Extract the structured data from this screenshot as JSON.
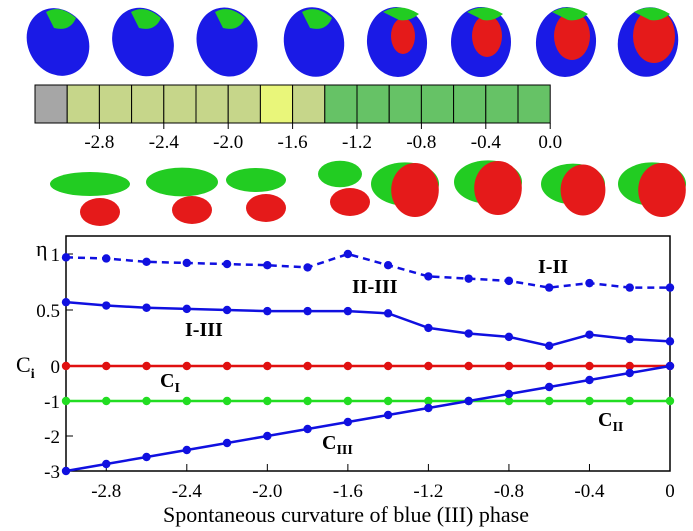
{
  "chart_data": [
    {
      "type": "heatmap",
      "cells": [
        {
          "x": -3.0,
          "color": "#a6a6a6"
        },
        {
          "x": -2.8,
          "color": "#c6d68a"
        },
        {
          "x": -2.6,
          "color": "#c6d68a"
        },
        {
          "x": -2.4,
          "color": "#c6d68a"
        },
        {
          "x": -2.2,
          "color": "#c6d68a"
        },
        {
          "x": -2.0,
          "color": "#c6d68a"
        },
        {
          "x": -1.8,
          "color": "#c6d68a"
        },
        {
          "x": -1.6,
          "color": "#e9f67a"
        },
        {
          "x": -1.4,
          "color": "#c6d68a"
        },
        {
          "x": -1.2,
          "color": "#66c266"
        },
        {
          "x": -1.0,
          "color": "#66c266"
        },
        {
          "x": -0.8,
          "color": "#66c266"
        },
        {
          "x": -0.6,
          "color": "#66c266"
        },
        {
          "x": -0.4,
          "color": "#66c266"
        },
        {
          "x": -0.2,
          "color": "#66c266"
        },
        {
          "x": 0.0,
          "color": "#66c266"
        }
      ],
      "tick_labels": [
        "-2.8",
        "-2.4",
        "-2.0",
        "-1.6",
        "-1.2",
        "-0.8",
        "-0.4",
        "0.0"
      ]
    },
    {
      "type": "line",
      "x": [
        -3.0,
        -2.8,
        -2.6,
        -2.4,
        -2.2,
        -2.0,
        -1.8,
        -1.6,
        -1.4,
        -1.2,
        -1.0,
        -0.8,
        -0.6,
        -0.4,
        -0.2,
        0.0
      ],
      "series": [
        {
          "name": "I-II",
          "style": "dashed",
          "color": "#1010e0",
          "values": [
            0.97,
            0.96,
            0.93,
            0.92,
            0.91,
            0.9,
            0.88,
            1.0,
            0.9,
            0.8,
            0.78,
            0.76,
            0.7,
            0.74,
            0.7,
            0.7
          ]
        },
        {
          "name": "I-III",
          "style": "solid",
          "color": "#1010e0",
          "values": [
            0.57,
            0.54,
            0.52,
            0.51,
            0.5,
            0.49,
            0.49,
            0.49,
            0.47,
            0.34,
            0.29,
            0.26,
            0.18,
            0.28,
            0.24,
            0.22
          ]
        },
        {
          "name": "C_I",
          "style": "solid",
          "color": "#e01010",
          "values": [
            0,
            0,
            0,
            0,
            0,
            0,
            0,
            0,
            0,
            0,
            0,
            0,
            0,
            0,
            0,
            0
          ]
        },
        {
          "name": "C_II",
          "style": "solid",
          "color": "#22dd22",
          "values": [
            -1,
            -1,
            -1,
            -1,
            -1,
            -1,
            -1,
            -1,
            -1,
            -1,
            -1,
            -1,
            -1,
            -1,
            -1,
            -1
          ]
        },
        {
          "name": "C_III",
          "style": "solid",
          "color": "#1010e0",
          "values": [
            -3.0,
            -2.8,
            -2.6,
            -2.4,
            -2.2,
            -2.0,
            -1.8,
            -1.6,
            -1.4,
            -1.2,
            -1.0,
            -0.8,
            -0.6,
            -0.4,
            -0.2,
            0.0
          ]
        }
      ],
      "annotations": [
        "I-II",
        "II-III",
        "I-III"
      ],
      "xlabel": "Spontaneous curvature of blue (III) phase",
      "ylabel_upper": "η",
      "ylabel_lower": "C",
      "ylabel_lower_sub": "i",
      "xticks": [
        "-2.8",
        "-2.4",
        "-2.0",
        "-1.6",
        "-1.2",
        "-0.8",
        "-0.4",
        "0"
      ],
      "yticks": [
        "1",
        "0.5",
        "0",
        "-1",
        "-2",
        "-3"
      ],
      "xlim": [
        -3.0,
        0.0
      ],
      "ylim": [
        -3.0,
        1.0
      ],
      "grid": false
    }
  ],
  "thumbnails": {
    "top_colors": {
      "blue": "#1a1ae6",
      "red": "#e51a1a",
      "green": "#22cc22"
    }
  }
}
